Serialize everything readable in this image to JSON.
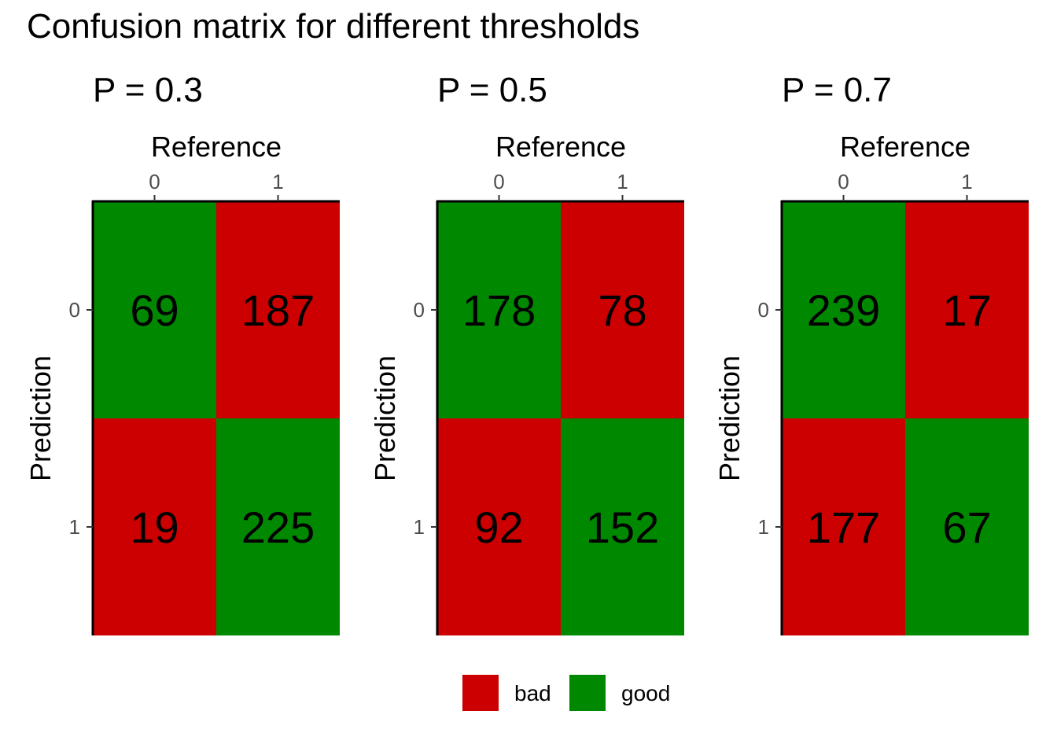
{
  "chart_data": {
    "type": "heatmap",
    "title": "Confusion matrix for different thresholds",
    "xlabel": "Reference",
    "ylabel": "Prediction",
    "x_categories": [
      "0",
      "1"
    ],
    "y_categories": [
      "0",
      "1"
    ],
    "x_axis_position": "top",
    "grid": false,
    "legend_position": "bottom",
    "colors": {
      "bad": "#cc0000",
      "good": "#008800"
    },
    "legend": [
      {
        "label": "bad",
        "color": "#cc0000"
      },
      {
        "label": "good",
        "color": "#008800"
      }
    ],
    "panels": [
      {
        "title": "P = 0.3",
        "cells": [
          {
            "reference": "0",
            "prediction": "0",
            "value": 69,
            "class": "good"
          },
          {
            "reference": "1",
            "prediction": "0",
            "value": 187,
            "class": "bad"
          },
          {
            "reference": "0",
            "prediction": "1",
            "value": 19,
            "class": "bad"
          },
          {
            "reference": "1",
            "prediction": "1",
            "value": 225,
            "class": "good"
          }
        ]
      },
      {
        "title": "P = 0.5",
        "cells": [
          {
            "reference": "0",
            "prediction": "0",
            "value": 178,
            "class": "good"
          },
          {
            "reference": "1",
            "prediction": "0",
            "value": 78,
            "class": "bad"
          },
          {
            "reference": "0",
            "prediction": "1",
            "value": 92,
            "class": "bad"
          },
          {
            "reference": "1",
            "prediction": "1",
            "value": 152,
            "class": "good"
          }
        ]
      },
      {
        "title": "P = 0.7",
        "cells": [
          {
            "reference": "0",
            "prediction": "0",
            "value": 239,
            "class": "good"
          },
          {
            "reference": "1",
            "prediction": "0",
            "value": 17,
            "class": "bad"
          },
          {
            "reference": "0",
            "prediction": "1",
            "value": 177,
            "class": "bad"
          },
          {
            "reference": "1",
            "prediction": "1",
            "value": 67,
            "class": "good"
          }
        ]
      }
    ]
  }
}
